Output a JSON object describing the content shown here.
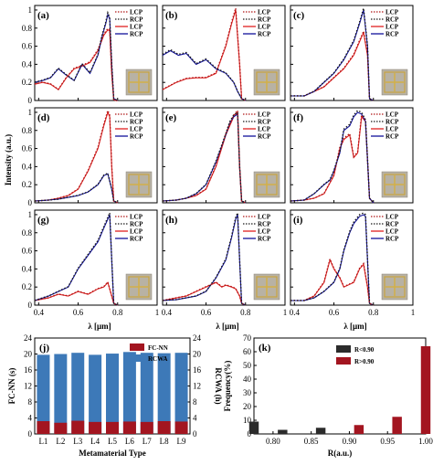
{
  "figure": {
    "colors": {
      "lcp_sim": "#e02020",
      "rcp_sim": "#10109a",
      "lcp_dot": "#b01818",
      "rcp_dot": "#1a1a1a",
      "fcnn": "#a31520",
      "rcwa": "#3d79b8",
      "k_low": "#2b2b2b",
      "k_high": "#a31520"
    },
    "ylabel": "Intensity (a.u.)",
    "xlabel": "λ [μm]",
    "y_ticks": [
      "0",
      "0.2",
      "0.4",
      "0.6",
      "0.8",
      "1"
    ],
    "x_ticks": [
      "0.4",
      "0.6",
      "0.8",
      "1"
    ]
  },
  "chart_data": [
    {
      "type": "line",
      "panel": "(a)",
      "legend": [
        "LCP",
        "RCP",
        "LCP",
        "RCP"
      ],
      "xlim": [
        0.38,
        1.0
      ],
      "ylim": [
        0,
        1.05
      ],
      "series": [
        {
          "name": "LCP",
          "x": [
            0.38,
            0.42,
            0.46,
            0.5,
            0.54,
            0.58,
            0.62,
            0.66,
            0.7,
            0.73,
            0.75,
            0.76,
            0.77,
            0.78,
            0.79,
            0.8
          ],
          "y": [
            0.18,
            0.2,
            0.18,
            0.12,
            0.25,
            0.35,
            0.38,
            0.42,
            0.55,
            0.72,
            0.78,
            0.77,
            0.3,
            0.01,
            0.0,
            0.0
          ]
        },
        {
          "name": "RCP",
          "x": [
            0.38,
            0.42,
            0.46,
            0.5,
            0.54,
            0.58,
            0.62,
            0.66,
            0.7,
            0.72,
            0.74,
            0.75,
            0.76,
            0.77,
            0.78,
            0.8
          ],
          "y": [
            0.2,
            0.22,
            0.25,
            0.35,
            0.28,
            0.22,
            0.4,
            0.3,
            0.5,
            0.7,
            0.85,
            0.95,
            0.9,
            0.4,
            0.02,
            0.0
          ]
        }
      ]
    },
    {
      "type": "line",
      "panel": "(b)",
      "legend": [
        "LCP",
        "RCP",
        "LCP",
        "RCP"
      ],
      "xlim": [
        0.38,
        1.0
      ],
      "ylim": [
        0,
        1.05
      ],
      "series": [
        {
          "name": "LCP",
          "x": [
            0.38,
            0.45,
            0.5,
            0.55,
            0.6,
            0.65,
            0.7,
            0.73,
            0.75,
            0.77,
            0.78,
            0.8
          ],
          "y": [
            0.12,
            0.2,
            0.24,
            0.25,
            0.25,
            0.3,
            0.6,
            0.85,
            1.0,
            0.4,
            0.02,
            0.0
          ]
        },
        {
          "name": "RCP",
          "x": [
            0.38,
            0.42,
            0.46,
            0.5,
            0.55,
            0.6,
            0.65,
            0.7,
            0.74,
            0.76,
            0.78,
            0.8
          ],
          "y": [
            0.5,
            0.55,
            0.5,
            0.52,
            0.4,
            0.45,
            0.35,
            0.3,
            0.2,
            0.1,
            0.02,
            0.0
          ]
        }
      ]
    },
    {
      "type": "line",
      "panel": "(c)",
      "legend": [
        "LCP",
        "RCP",
        "LCP",
        "RCP"
      ],
      "xlim": [
        0.38,
        1.0
      ],
      "ylim": [
        0,
        1.05
      ],
      "series": [
        {
          "name": "LCP",
          "x": [
            0.38,
            0.45,
            0.5,
            0.55,
            0.6,
            0.65,
            0.7,
            0.73,
            0.75,
            0.77,
            0.78,
            0.8
          ],
          "y": [
            0.05,
            0.05,
            0.1,
            0.15,
            0.25,
            0.35,
            0.5,
            0.65,
            0.75,
            0.5,
            0.02,
            0.0
          ]
        },
        {
          "name": "RCP",
          "x": [
            0.38,
            0.45,
            0.5,
            0.55,
            0.6,
            0.65,
            0.7,
            0.73,
            0.75,
            0.77,
            0.78,
            0.8
          ],
          "y": [
            0.05,
            0.05,
            0.1,
            0.2,
            0.3,
            0.45,
            0.65,
            0.85,
            1.0,
            0.6,
            0.02,
            0.0
          ]
        }
      ]
    },
    {
      "type": "line",
      "panel": "(d)",
      "legend": [
        "LCP",
        "RCP",
        "LCP",
        "RCP"
      ],
      "xlim": [
        0.38,
        1.0
      ],
      "ylim": [
        0,
        1.05
      ],
      "series": [
        {
          "name": "LCP",
          "x": [
            0.38,
            0.45,
            0.5,
            0.55,
            0.6,
            0.65,
            0.7,
            0.73,
            0.75,
            0.76,
            0.77,
            0.78,
            0.8
          ],
          "y": [
            0.02,
            0.03,
            0.05,
            0.08,
            0.15,
            0.35,
            0.6,
            0.85,
            1.0,
            0.95,
            0.4,
            0.02,
            0.0
          ]
        },
        {
          "name": "RCP",
          "x": [
            0.38,
            0.45,
            0.5,
            0.55,
            0.6,
            0.65,
            0.7,
            0.73,
            0.75,
            0.77,
            0.78,
            0.8
          ],
          "y": [
            0.02,
            0.03,
            0.04,
            0.06,
            0.08,
            0.12,
            0.2,
            0.3,
            0.32,
            0.15,
            0.02,
            0.0
          ]
        }
      ]
    },
    {
      "type": "line",
      "panel": "(e)",
      "legend": [
        "LCP",
        "RCP",
        "LCP",
        "RCP"
      ],
      "xlim": [
        0.38,
        1.0
      ],
      "ylim": [
        0,
        1.05
      ],
      "series": [
        {
          "name": "LCP",
          "x": [
            0.38,
            0.45,
            0.5,
            0.55,
            0.6,
            0.65,
            0.7,
            0.72,
            0.74,
            0.76,
            0.77,
            0.78,
            0.8
          ],
          "y": [
            0.02,
            0.03,
            0.05,
            0.08,
            0.15,
            0.4,
            0.75,
            0.85,
            0.95,
            1.0,
            0.4,
            0.02,
            0.0
          ]
        },
        {
          "name": "RCP",
          "x": [
            0.38,
            0.45,
            0.5,
            0.55,
            0.6,
            0.65,
            0.7,
            0.72,
            0.74,
            0.76,
            0.77,
            0.78,
            0.8
          ],
          "y": [
            0.02,
            0.03,
            0.05,
            0.1,
            0.2,
            0.45,
            0.75,
            0.88,
            0.95,
            0.98,
            0.4,
            0.02,
            0.0
          ]
        }
      ]
    },
    {
      "type": "line",
      "panel": "(f)",
      "legend": [
        "LCP",
        "RCP",
        "LCP",
        "RCP"
      ],
      "xlim": [
        0.38,
        1.0
      ],
      "ylim": [
        0,
        1.05
      ],
      "series": [
        {
          "name": "LCP",
          "x": [
            0.38,
            0.45,
            0.5,
            0.55,
            0.6,
            0.63,
            0.65,
            0.68,
            0.7,
            0.72,
            0.74,
            0.76,
            0.78,
            0.8
          ],
          "y": [
            0.02,
            0.03,
            0.05,
            0.1,
            0.3,
            0.6,
            0.7,
            0.75,
            0.5,
            0.55,
            0.95,
            0.9,
            0.05,
            0.0
          ]
        },
        {
          "name": "RCP",
          "x": [
            0.38,
            0.45,
            0.5,
            0.55,
            0.58,
            0.6,
            0.63,
            0.65,
            0.68,
            0.7,
            0.72,
            0.74,
            0.76,
            0.78,
            0.8
          ],
          "y": [
            0.02,
            0.03,
            0.1,
            0.2,
            0.25,
            0.35,
            0.55,
            0.8,
            0.85,
            0.95,
            1.0,
            0.98,
            0.9,
            0.05,
            0.0
          ]
        }
      ]
    },
    {
      "type": "line",
      "panel": "(g)",
      "legend": [
        "LCP",
        "RCP",
        "LCP",
        "RCP"
      ],
      "xlim": [
        0.38,
        1.0
      ],
      "ylim": [
        0,
        1.05
      ],
      "series": [
        {
          "name": "LCP",
          "x": [
            0.38,
            0.45,
            0.5,
            0.55,
            0.6,
            0.65,
            0.7,
            0.73,
            0.75,
            0.77,
            0.78,
            0.8
          ],
          "y": [
            0.05,
            0.08,
            0.12,
            0.1,
            0.15,
            0.12,
            0.18,
            0.2,
            0.25,
            0.1,
            0.02,
            0.0
          ]
        },
        {
          "name": "RCP",
          "x": [
            0.38,
            0.45,
            0.5,
            0.55,
            0.6,
            0.65,
            0.7,
            0.73,
            0.75,
            0.76,
            0.77,
            0.78,
            0.8
          ],
          "y": [
            0.05,
            0.1,
            0.15,
            0.2,
            0.4,
            0.55,
            0.7,
            0.85,
            0.95,
            1.0,
            0.5,
            0.02,
            0.0
          ]
        }
      ]
    },
    {
      "type": "line",
      "panel": "(h)",
      "legend": [
        "LCP",
        "RCP",
        "LCP",
        "RCP"
      ],
      "xlim": [
        0.38,
        1.0
      ],
      "ylim": [
        0,
        1.05
      ],
      "series": [
        {
          "name": "LCP",
          "x": [
            0.38,
            0.45,
            0.5,
            0.55,
            0.6,
            0.65,
            0.68,
            0.7,
            0.73,
            0.75,
            0.77,
            0.78,
            0.8
          ],
          "y": [
            0.05,
            0.08,
            0.1,
            0.15,
            0.2,
            0.25,
            0.2,
            0.22,
            0.2,
            0.18,
            0.1,
            0.02,
            0.0
          ]
        },
        {
          "name": "RCP",
          "x": [
            0.38,
            0.45,
            0.5,
            0.55,
            0.6,
            0.65,
            0.7,
            0.73,
            0.75,
            0.76,
            0.77,
            0.78,
            0.8
          ],
          "y": [
            0.05,
            0.06,
            0.08,
            0.1,
            0.15,
            0.3,
            0.5,
            0.75,
            0.95,
            1.0,
            0.5,
            0.02,
            0.0
          ]
        }
      ]
    },
    {
      "type": "line",
      "panel": "(i)",
      "legend": [
        "LCP",
        "RCP",
        "LCP",
        "RCP"
      ],
      "xlim": [
        0.38,
        1.0
      ],
      "ylim": [
        0,
        1.05
      ],
      "series": [
        {
          "name": "LCP",
          "x": [
            0.38,
            0.45,
            0.5,
            0.55,
            0.58,
            0.6,
            0.63,
            0.65,
            0.7,
            0.73,
            0.75,
            0.77,
            0.78,
            0.8
          ],
          "y": [
            0.05,
            0.05,
            0.1,
            0.25,
            0.5,
            0.4,
            0.3,
            0.2,
            0.25,
            0.4,
            0.45,
            0.2,
            0.02,
            0.0
          ]
        },
        {
          "name": "RCP",
          "x": [
            0.38,
            0.45,
            0.5,
            0.55,
            0.6,
            0.63,
            0.65,
            0.68,
            0.7,
            0.73,
            0.75,
            0.76,
            0.77,
            0.78,
            0.8
          ],
          "y": [
            0.05,
            0.05,
            0.08,
            0.15,
            0.25,
            0.4,
            0.6,
            0.8,
            0.9,
            0.98,
            1.0,
            0.98,
            0.5,
            0.02,
            0.0
          ]
        }
      ]
    },
    {
      "type": "bar",
      "panel": "(j)",
      "categories": [
        "L1",
        "L2",
        "L3",
        "L4",
        "L5",
        "L6",
        "L7",
        "L8",
        "L9"
      ],
      "xlabel": "Metamaterial Type",
      "ylabel": "FC-NN (s)",
      "ylabel_right": "RCWA (h)",
      "ylim": [
        0,
        24
      ],
      "yticks": [
        "0",
        "4",
        "8",
        "12",
        "16",
        "20",
        "24"
      ],
      "legend": "top-right",
      "series": [
        {
          "name": "FC-NN",
          "values": [
            3.2,
            2.8,
            3.3,
            3.0,
            3.0,
            3.1,
            3.0,
            3.2,
            3.1
          ]
        },
        {
          "name": "RCWA",
          "values": [
            19.8,
            20.0,
            20.3,
            19.8,
            20.1,
            20.5,
            20.3,
            20.2,
            20.3
          ]
        }
      ]
    },
    {
      "type": "bar",
      "panel": "(k)",
      "xlabel": "R(a.u.)",
      "ylabel": "Frequency(%)",
      "xlim": [
        0.775,
        1.0
      ],
      "ylim": [
        0,
        70
      ],
      "xticks": [
        "0.80",
        "0.85",
        "0.90",
        "0.95",
        "1.00"
      ],
      "yticks": [
        "0",
        "10",
        "20",
        "30",
        "40",
        "50",
        "60",
        "70"
      ],
      "legend": "top-left",
      "series": [
        {
          "name": "R<0.90",
          "x": [
            0.775,
            0.8125,
            0.8625
          ],
          "values": [
            9,
            3,
            4.5
          ]
        },
        {
          "name": "R>0.90",
          "x": [
            0.9125,
            0.9625,
            1.0
          ],
          "values": [
            6.5,
            12.5,
            64
          ]
        }
      ]
    }
  ]
}
